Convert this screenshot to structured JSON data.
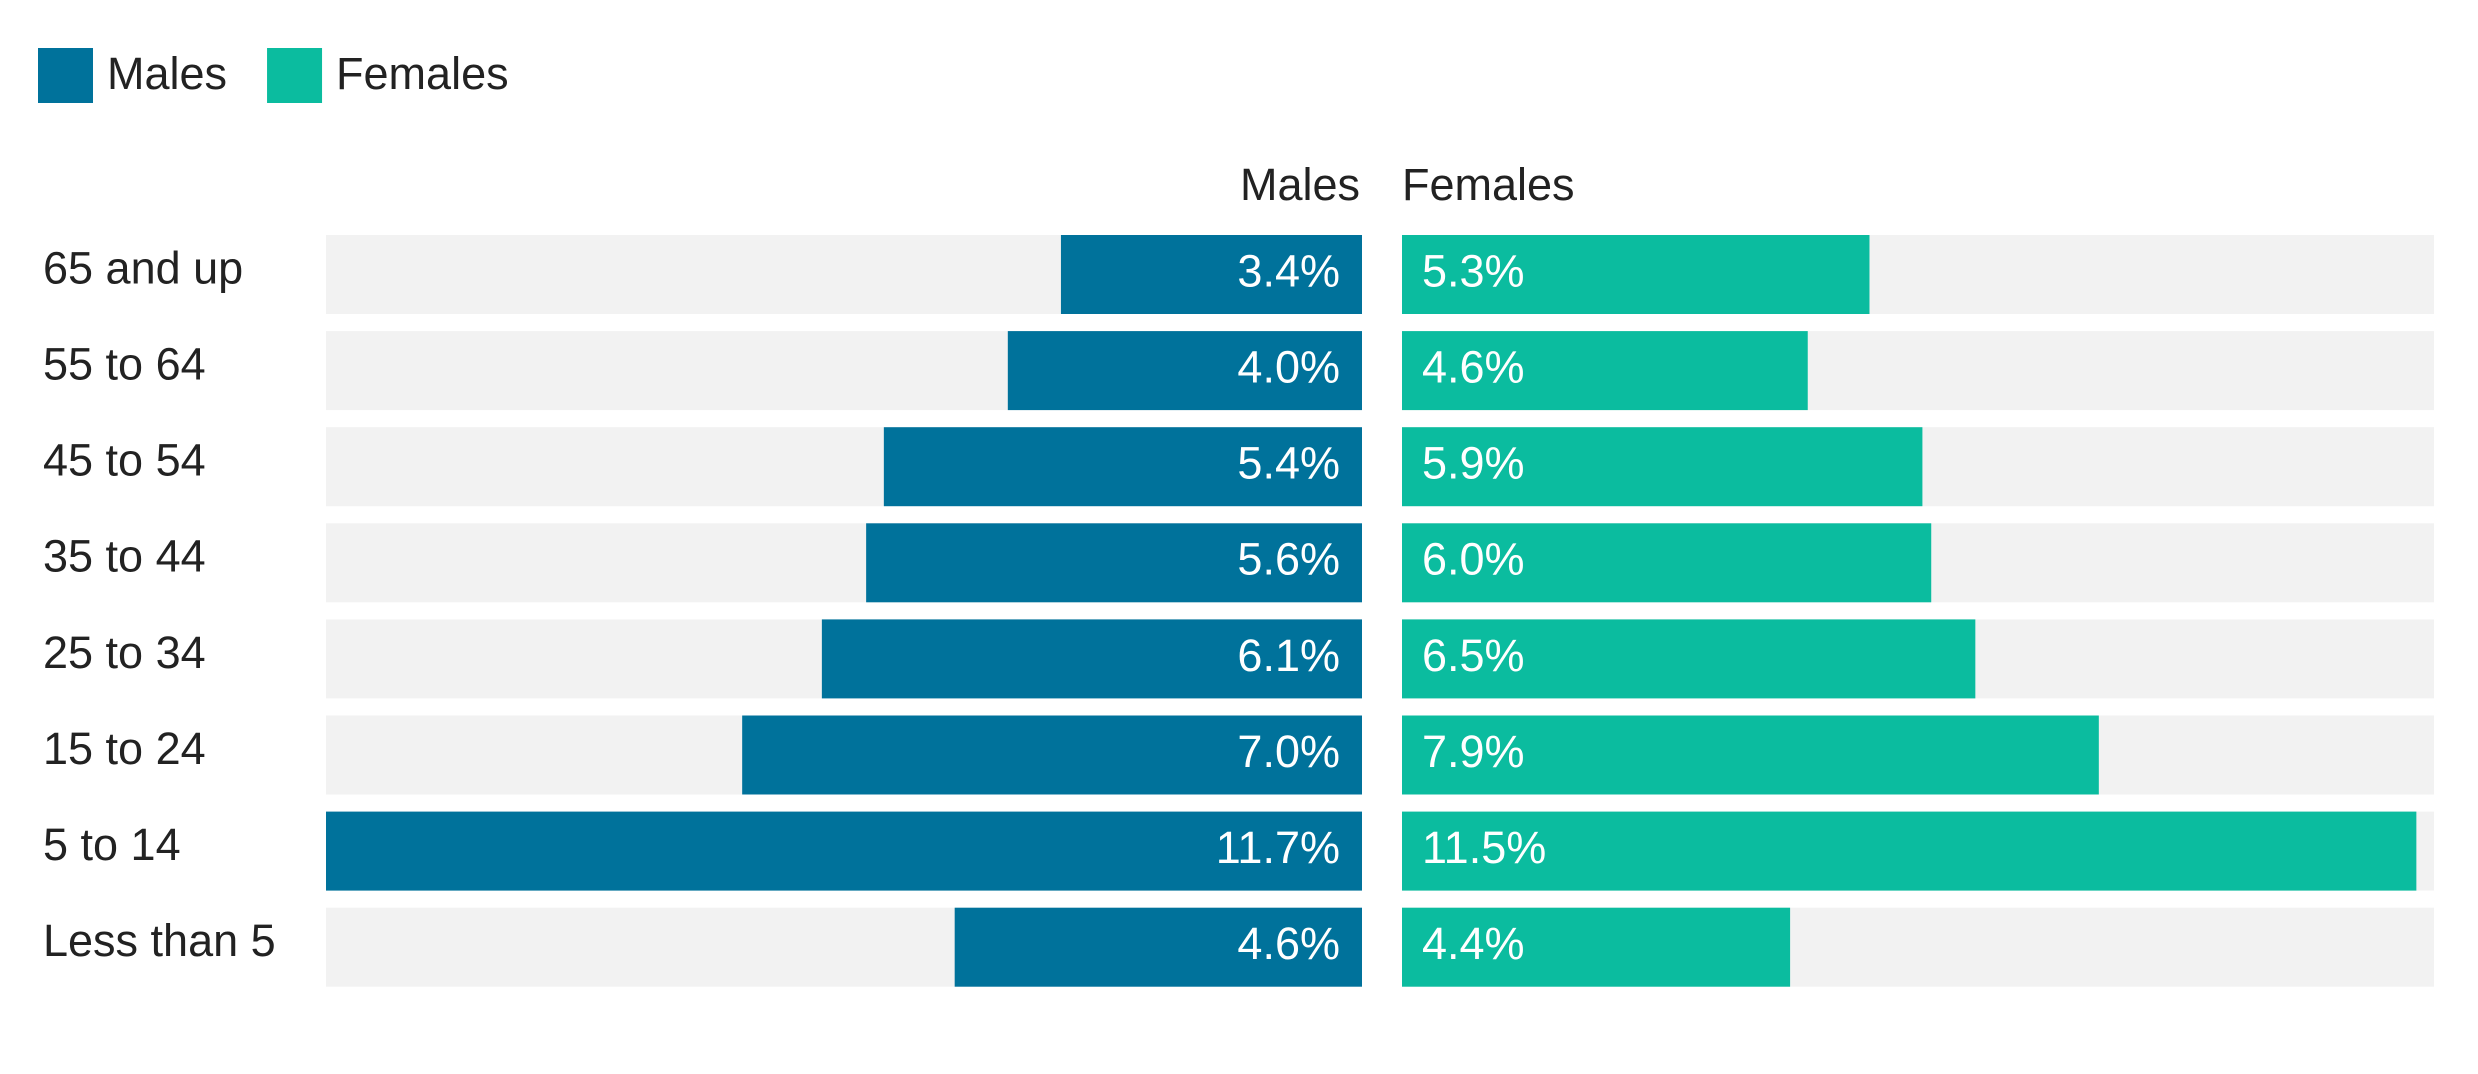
{
  "chart_data": {
    "type": "butterfly-bar",
    "categories": [
      "65 and up",
      "55 to 64",
      "45 to 54",
      "35 to 44",
      "25 to 34",
      "15 to 24",
      "5 to 14",
      "Less than 5"
    ],
    "series": [
      {
        "name": "Males",
        "color": "#00729b",
        "values": [
          3.4,
          4.0,
          5.4,
          5.6,
          6.1,
          7.0,
          11.7,
          4.6
        ],
        "value_labels": [
          "3.4%",
          "4.0%",
          "5.4%",
          "5.6%",
          "6.1%",
          "7.0%",
          "11.7%",
          "4.6%"
        ]
      },
      {
        "name": "Females",
        "color": "#0bbc9f",
        "values": [
          5.3,
          4.6,
          5.9,
          6.0,
          6.5,
          7.9,
          11.5,
          4.4
        ],
        "value_labels": [
          "5.3%",
          "4.6%",
          "5.9%",
          "6.0%",
          "6.5%",
          "7.9%",
          "11.5%",
          "4.4%"
        ]
      }
    ],
    "xlim": [
      0,
      11.7
    ],
    "track_color": "#f2f2f2",
    "legend": "top-left"
  }
}
